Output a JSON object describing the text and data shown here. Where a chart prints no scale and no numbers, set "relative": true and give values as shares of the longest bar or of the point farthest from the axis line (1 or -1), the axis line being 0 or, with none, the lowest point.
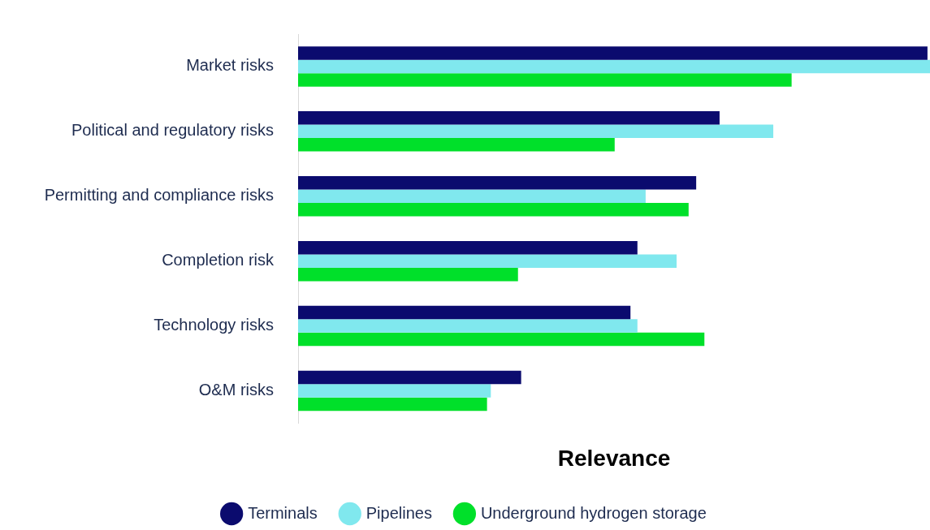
{
  "chart_data": {
    "type": "bar",
    "orientation": "horizontal",
    "relative": true,
    "xlabel": "Relevance",
    "legend": "bottom",
    "categories": [
      "Market risks",
      "Political and regulatory risks",
      "Permitting and compliance risks",
      "Completion risk",
      "Technology risks",
      "O&M risks"
    ],
    "series": [
      {
        "name": "Terminals",
        "color": "#0b0b6e",
        "values": [
          0.996,
          0.667,
          0.63,
          0.537,
          0.526,
          0.353
        ]
      },
      {
        "name": "Pipelines",
        "color": "#80e8ee",
        "values": [
          1,
          0.752,
          0.55,
          0.599,
          0.537,
          0.305
        ]
      },
      {
        "name": "Underground hydrogen storage",
        "color": "#00e02a",
        "values": [
          0.781,
          0.501,
          0.618,
          0.348,
          0.643,
          0.299
        ]
      }
    ]
  }
}
